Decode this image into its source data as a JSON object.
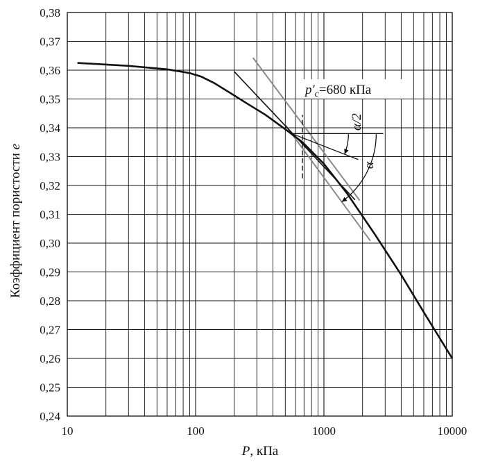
{
  "chart_data": {
    "type": "line",
    "xscale": "log",
    "xlim": [
      10,
      10000
    ],
    "ylim": [
      0.24,
      0.38
    ],
    "grid": true,
    "xlabel_main": "P",
    "xlabel_unit": ", кПа",
    "ylabel_main": "Коэффициент пористости",
    "ylabel_symbol": "e",
    "x_tick_values": [
      10,
      100,
      1000,
      10000
    ],
    "x_tick_labels": [
      "10",
      "100",
      "1000",
      "10000"
    ],
    "y_tick_values": [
      0.24,
      0.25,
      0.26,
      0.27,
      0.28,
      0.29,
      0.3,
      0.31,
      0.32,
      0.33,
      0.34,
      0.35,
      0.36,
      0.37,
      0.38
    ],
    "y_tick_labels": [
      "0,24",
      "0,25",
      "0,26",
      "0,27",
      "0,28",
      "0,29",
      "0,30",
      "0,31",
      "0,32",
      "0,33",
      "0,34",
      "0,35",
      "0,36",
      "0,37",
      "0,38"
    ],
    "curve": {
      "x": [
        12,
        30,
        60,
        90,
        110,
        140,
        180,
        250,
        350,
        500,
        680,
        1000,
        1500,
        2500,
        4000,
        6000,
        10000
      ],
      "y": [
        0.3625,
        0.3615,
        0.3603,
        0.359,
        0.3578,
        0.3555,
        0.3525,
        0.3485,
        0.3445,
        0.3395,
        0.335,
        0.3275,
        0.3175,
        0.303,
        0.289,
        0.276,
        0.26
      ]
    },
    "tangent_line": {
      "x": [
        200,
        1750
      ],
      "y": [
        0.3595,
        0.315
      ]
    },
    "bisector_line": {
      "x": [
        280,
        1900
      ],
      "y": [
        0.3643,
        0.3148
      ]
    },
    "compression_line": {
      "x": [
        500,
        2300
      ],
      "y": [
        0.341,
        0.3008
      ]
    },
    "horizontal_line": {
      "x": [
        560,
        2900
      ],
      "y": [
        0.338,
        0.338
      ]
    },
    "preconsolidation": {
      "x": 680,
      "y_range": [
        0.3225,
        0.3445
      ]
    },
    "annotation": {
      "prefix": "p′",
      "subscript": "c",
      "value_text": "=680 кПа",
      "half_angle": "α/2",
      "angle": "α"
    }
  }
}
